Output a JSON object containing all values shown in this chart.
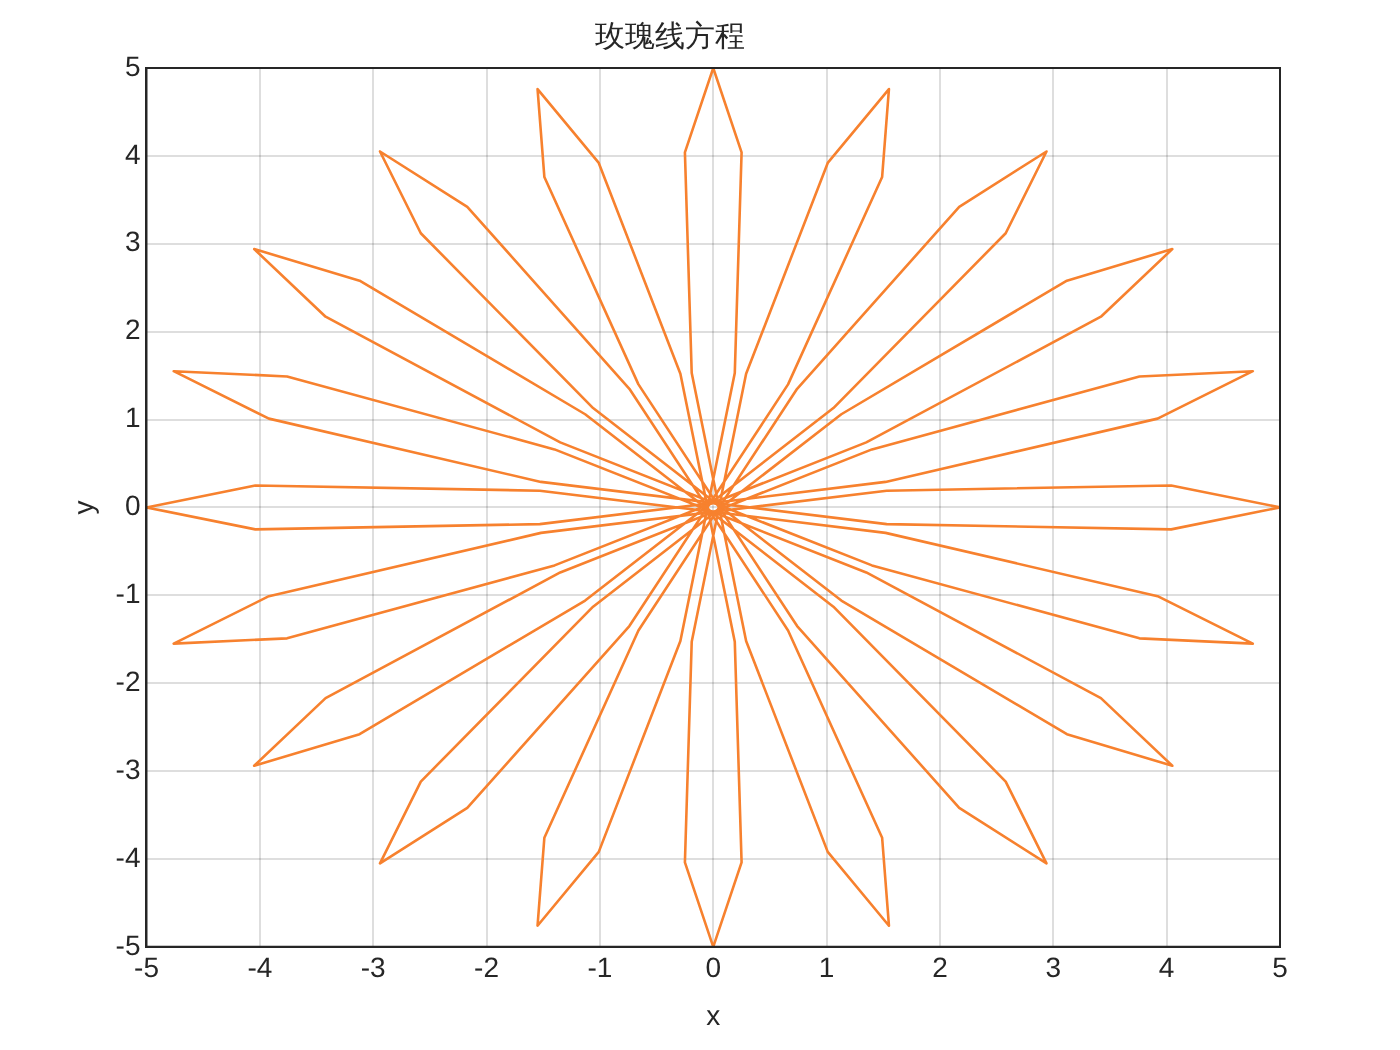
{
  "chart_data": {
    "type": "line",
    "title": "玫瑰线方程",
    "xlabel": "x",
    "ylabel": "y",
    "marker": "none",
    "line_style": "solid",
    "grid": true,
    "legend": false,
    "xlim": [
      -5,
      5
    ],
    "ylim": [
      -5,
      5
    ],
    "xticks": [
      -5,
      -4,
      -3,
      -2,
      -1,
      0,
      1,
      2,
      3,
      4,
      5
    ],
    "yticks": [
      -5,
      -4,
      -3,
      -2,
      -1,
      0,
      1,
      2,
      3,
      4,
      5
    ],
    "series": [
      {
        "color": "#f7812e",
        "x": [
          5,
          4.04,
          1.53,
          -1.52,
          -3.92,
          -4.76,
          -3.76,
          -1.4,
          1.35,
          3.42,
          4.05,
          3.12,
          1.13,
          -1.06,
          -2.58,
          -2.94,
          -2.17,
          -0.74,
          0.66,
          1.49,
          1.55,
          1.01,
          0.29,
          -0.19,
          -0.25,
          0,
          0.25,
          0.19,
          -0.29,
          -1.01,
          -1.55,
          -1.49,
          -0.66,
          0.74,
          2.17,
          2.94,
          2.58,
          1.06,
          -1.13,
          -3.12,
          -4.05,
          -3.42,
          -1.35,
          1.4,
          3.76,
          4.76,
          3.92,
          1.52,
          -1.53,
          -4.04,
          -5
        ],
        "values": [
          0,
          0.25,
          0.19,
          -0.29,
          -1.01,
          -1.55,
          -1.49,
          -0.66,
          0.74,
          2.17,
          2.94,
          2.58,
          1.06,
          -1.13,
          -3.12,
          -4.05,
          -3.42,
          -1.35,
          1.4,
          3.76,
          4.76,
          3.92,
          1.52,
          -1.53,
          -4.04,
          -5,
          -4.04,
          -1.53,
          1.52,
          3.92,
          4.76,
          3.76,
          1.4,
          -1.35,
          -3.42,
          -4.05,
          -3.12,
          -1.13,
          1.06,
          2.58,
          2.94,
          2.17,
          0.74,
          -0.66,
          -1.49,
          -1.55,
          -1.01,
          -0.29,
          0.19,
          0.25,
          0
        ]
      },
      {
        "color": "#f7812e",
        "x": [
          -5,
          -4.04,
          -1.53,
          1.52,
          3.92,
          4.76,
          3.76,
          1.4,
          -1.35,
          -3.42,
          -4.05,
          -3.12,
          -1.13,
          1.06,
          2.58,
          2.94,
          2.17,
          0.74,
          -0.66,
          -1.49,
          -1.55,
          -1.01,
          -0.29,
          0.19,
          0.25,
          0,
          -0.25,
          -0.19,
          0.29,
          1.01,
          1.55,
          1.49,
          0.66,
          -0.74,
          -2.17,
          -2.94,
          -2.58,
          -1.06,
          1.13,
          3.12,
          4.05,
          3.42,
          1.35,
          -1.4,
          -3.76,
          -4.76,
          -3.92,
          -1.52,
          1.53,
          4.04,
          5
        ],
        "values": [
          0,
          -0.25,
          -0.19,
          0.29,
          1.01,
          1.55,
          1.49,
          0.66,
          -0.74,
          -2.17,
          -2.94,
          -2.58,
          -1.06,
          1.13,
          3.12,
          4.05,
          3.42,
          1.35,
          -1.4,
          -3.76,
          -4.76,
          -3.92,
          -1.52,
          1.53,
          4.04,
          5,
          4.04,
          1.53,
          -1.52,
          -3.92,
          -4.76,
          -3.76,
          -1.4,
          1.35,
          3.42,
          4.05,
          3.12,
          1.13,
          -1.06,
          -2.58,
          -2.94,
          -2.17,
          -0.74,
          0.66,
          1.49,
          1.55,
          1.01,
          0.29,
          -0.19,
          -0.25,
          0
        ]
      }
    ]
  }
}
